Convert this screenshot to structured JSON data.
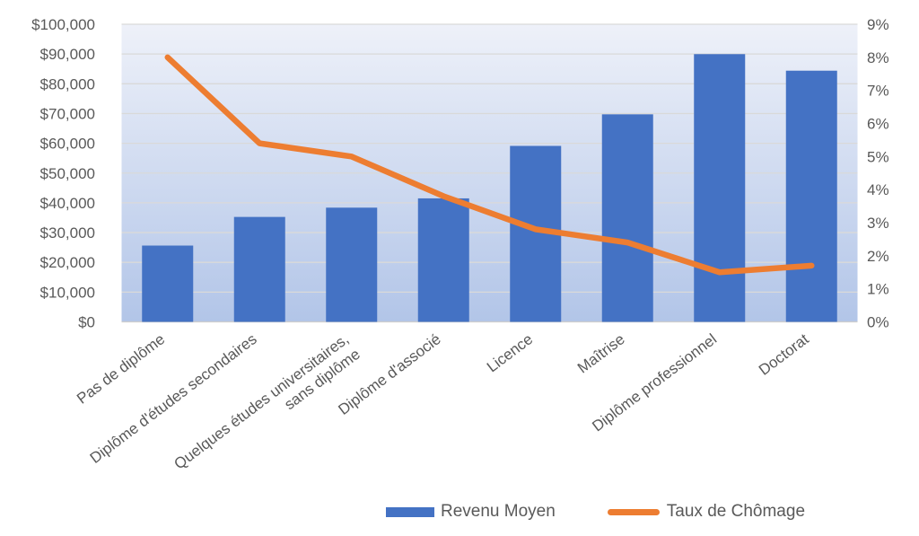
{
  "chart_data": {
    "type": "combo-bar-line",
    "categories": [
      "Pas de diplôme",
      "Diplôme d'études secondaires",
      "Quelques études universitaires,\nsans diplôme",
      "Diplôme d'associé",
      "Licence",
      "Maîtrise",
      "Diplôme professionnel",
      "Doctorat"
    ],
    "series": [
      {
        "name": "Revenu Moyen",
        "type": "bar",
        "axis": "left",
        "color": "#4472C4",
        "values": [
          25636,
          35256,
          38376,
          41496,
          59124,
          69732,
          89960,
          84396
        ]
      },
      {
        "name": "Taux de Chômage",
        "type": "line",
        "axis": "right",
        "color": "#ED7D31",
        "values": [
          8.0,
          5.4,
          5.0,
          3.8,
          2.8,
          2.4,
          1.5,
          1.7
        ]
      }
    ],
    "left_axis": {
      "min": 0,
      "max": 100000,
      "step": 10000,
      "tick_labels": [
        "$0",
        "$10,000",
        "$20,000",
        "$30,000",
        "$40,000",
        "$50,000",
        "$60,000",
        "$70,000",
        "$80,000",
        "$90,000",
        "$100,000"
      ]
    },
    "right_axis": {
      "min": 0,
      "max": 9,
      "step": 1,
      "tick_labels": [
        "0%",
        "1%",
        "2%",
        "3%",
        "4%",
        "5%",
        "6%",
        "7%",
        "8%",
        "9%"
      ]
    },
    "grid": true,
    "legend_position": "bottom-center",
    "styles": {
      "plot_bg_top": "#eef1f9",
      "plot_bg_bottom": "#b2c5e8",
      "gridline_color": "#d9d9d9",
      "axis_line_color": "#cfcecd",
      "tick_text_color": "#595959",
      "category_text_color": "#595959"
    }
  },
  "legend": {
    "items": [
      {
        "label": "Revenu Moyen",
        "swatch": "bar-swatch",
        "color": "#4472C4"
      },
      {
        "label": "Taux de Chômage",
        "swatch": "line-swatch",
        "color": "#ED7D31"
      }
    ]
  }
}
